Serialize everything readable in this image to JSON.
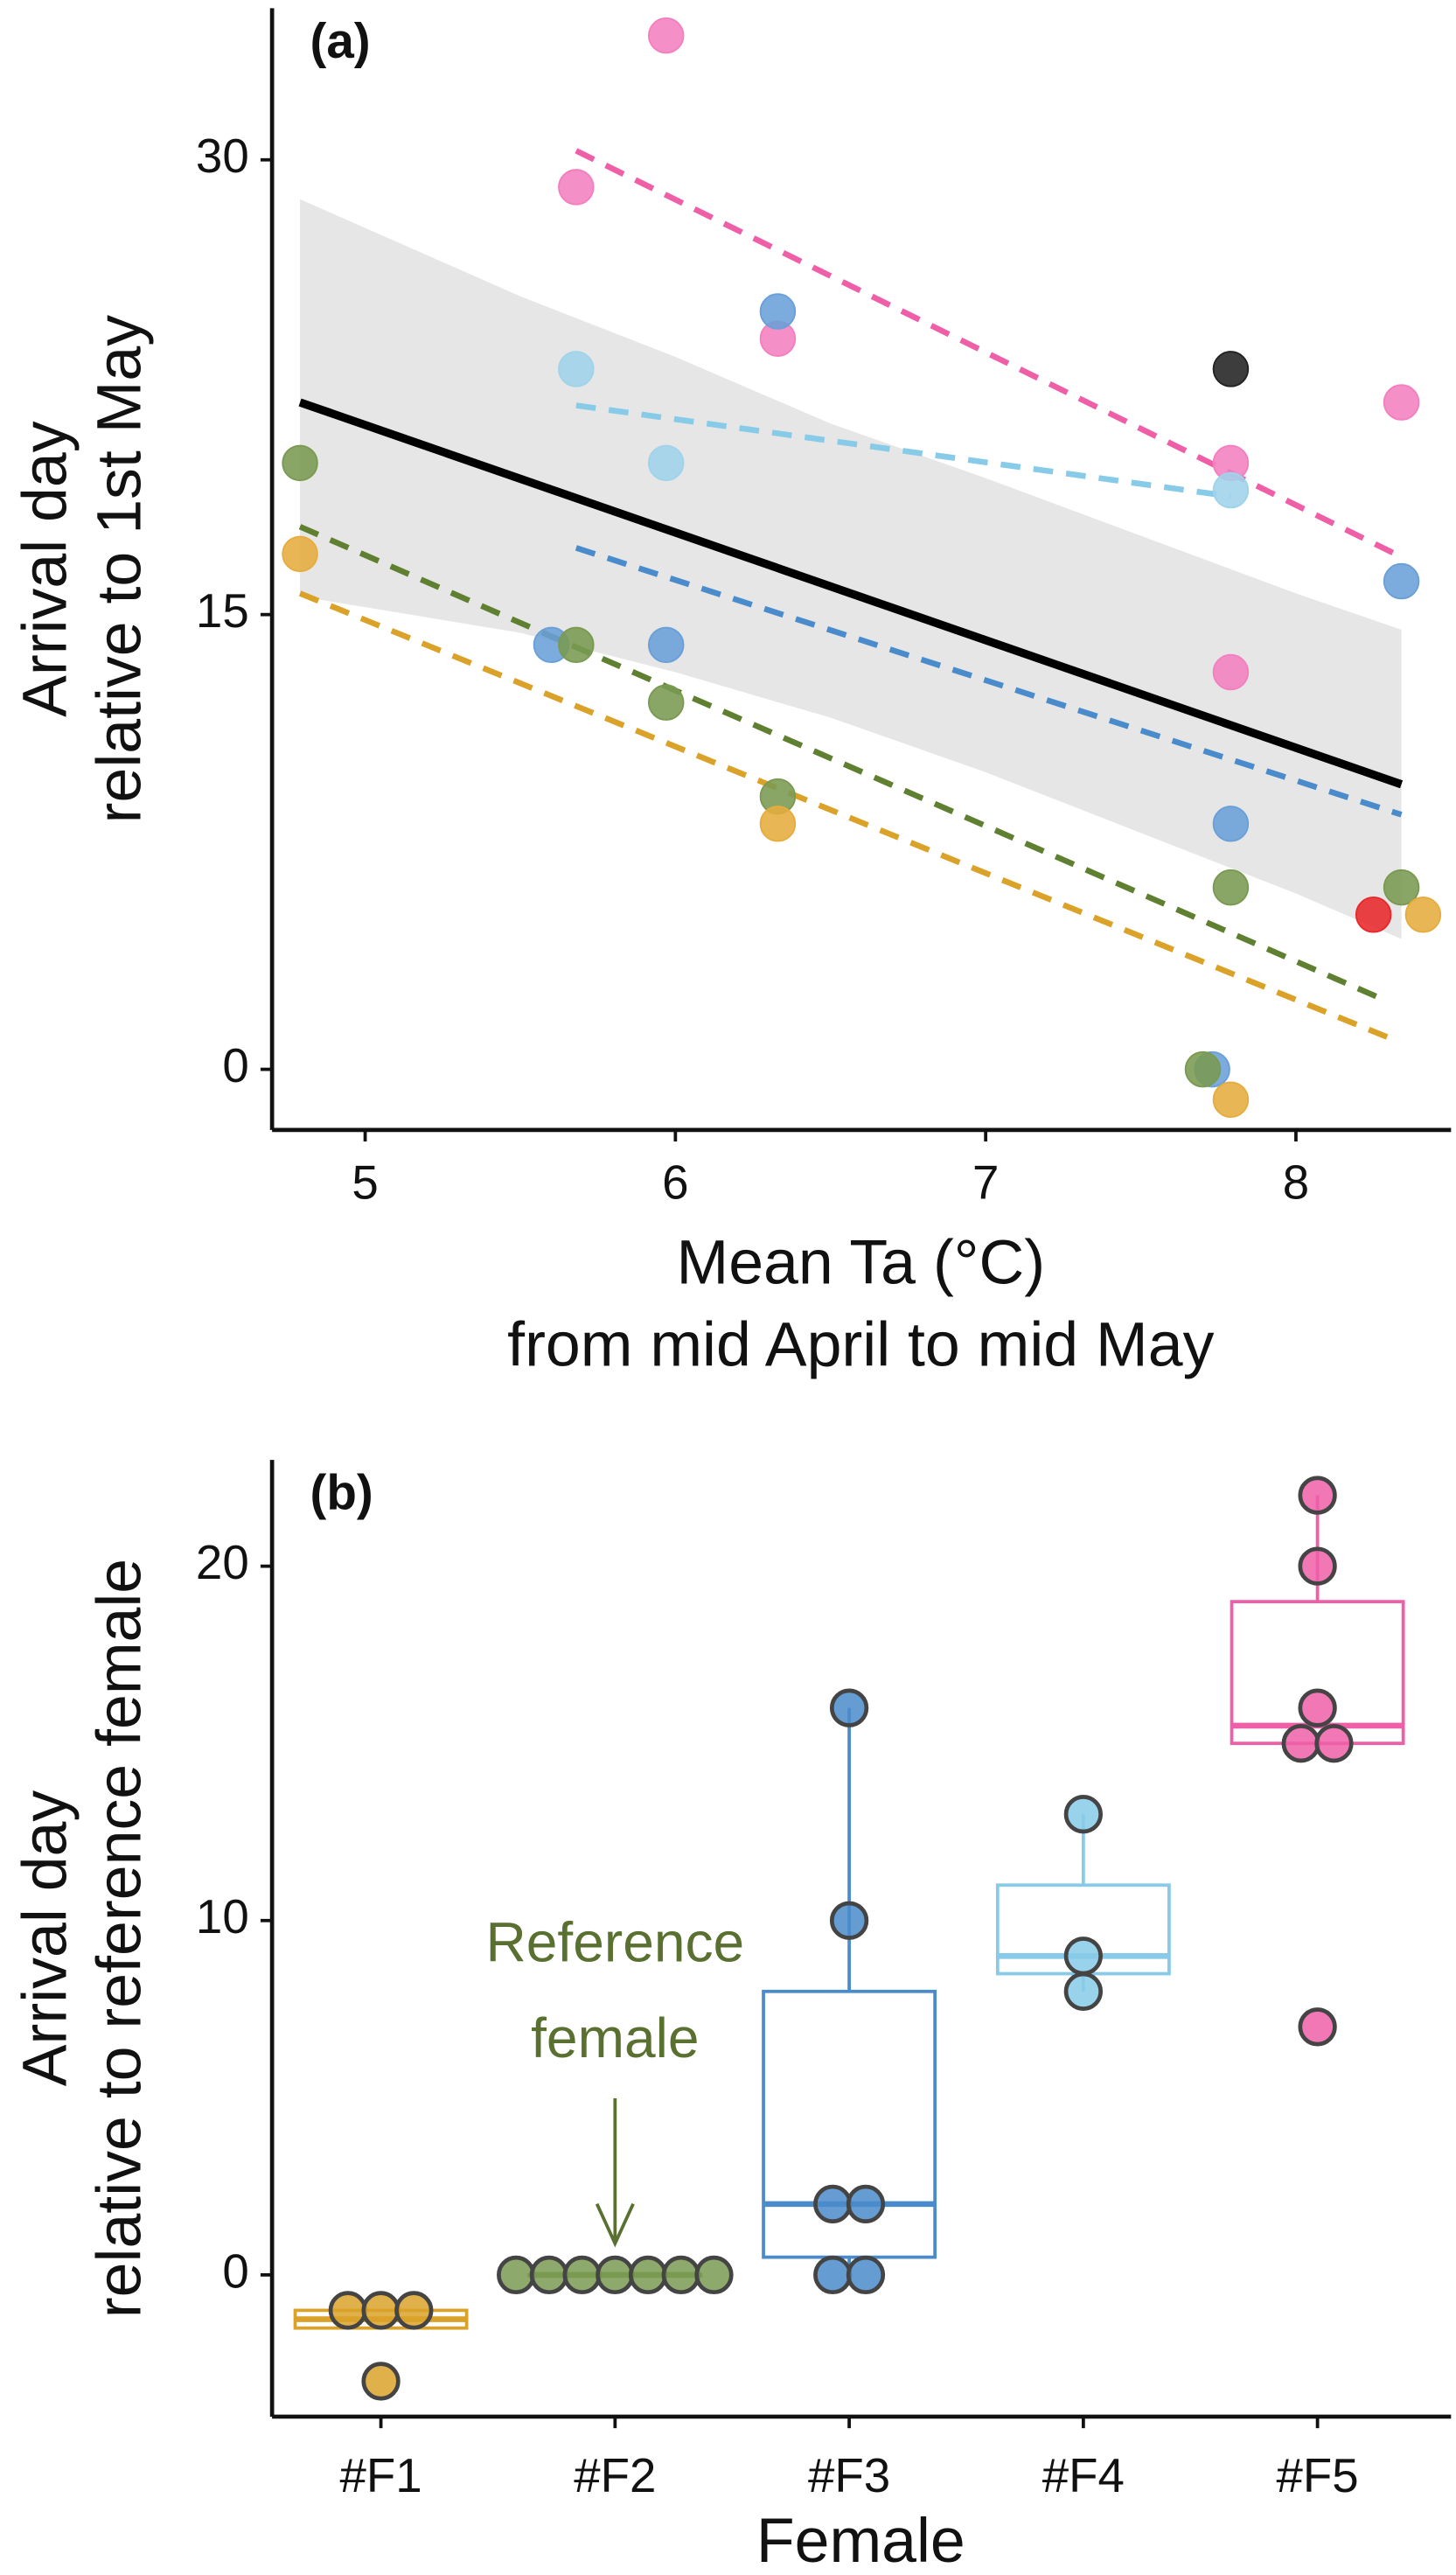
{
  "chart_data": [
    {
      "type": "scatter",
      "panel_label": "(a)",
      "x_label": [
        "Mean Ta (°C)",
        "from mid April to mid May"
      ],
      "y_label": [
        "Arrival day",
        "relative to 1st May"
      ],
      "xlim": [
        4.7,
        8.5
      ],
      "xticks": [
        5,
        6,
        7,
        8
      ],
      "ylim": [
        -2,
        35
      ],
      "yticks": [
        0,
        15,
        30
      ],
      "series": [
        {
          "color": "#f47fbf",
          "x": [
            5.97,
            5.68,
            6.33,
            7.79,
            7.79,
            8.34
          ],
          "values": [
            34.1,
            29.1,
            24.1,
            20.0,
            13.1,
            22.0
          ]
        },
        {
          "color": "#6a9fd8",
          "x": [
            6.33,
            5.6,
            5.97,
            7.79,
            8.34,
            7.73
          ],
          "values": [
            25.0,
            14.0,
            14.0,
            8.1,
            16.1,
            0
          ]
        },
        {
          "color": "#9fd3ea",
          "x": [
            5.68,
            5.97,
            7.79
          ],
          "values": [
            23.1,
            20.0,
            19.1
          ]
        },
        {
          "color": "#7a9a52",
          "x": [
            4.79,
            5.68,
            5.97,
            6.33,
            7.79,
            8.34,
            7.7
          ],
          "values": [
            20.0,
            14.0,
            12.1,
            9.0,
            6.0,
            6.0,
            0
          ]
        },
        {
          "color": "#e6ac3e",
          "x": [
            4.79,
            6.33,
            7.79,
            8.41
          ],
          "values": [
            17.0,
            8.1,
            -1.0,
            5.1
          ]
        },
        {
          "color": "#222222",
          "x": [
            7.79
          ],
          "values": [
            23.1
          ]
        },
        {
          "color": "#e8282b",
          "x": [
            8.25
          ],
          "values": [
            5.1
          ]
        }
      ],
      "fits": [
        {
          "color": "#ee5fa8",
          "x": [
            5.68,
            8.34
          ],
          "values": [
            30.3,
            16.9
          ]
        },
        {
          "color": "#87cbe8",
          "x": [
            5.68,
            7.79
          ],
          "values": [
            21.9,
            18.9
          ]
        },
        {
          "color": "#4a8ccb",
          "x": [
            5.68,
            8.34
          ],
          "values": [
            17.2,
            8.4
          ]
        },
        {
          "color": "#5f8030",
          "x": [
            4.79,
            8.26
          ],
          "values": [
            17.9,
            2.4
          ]
        },
        {
          "color": "#dba22a",
          "x": [
            4.79,
            8.31
          ],
          "values": [
            15.7,
            1.0
          ]
        }
      ],
      "overall_fit": {
        "color": "#000000",
        "x": [
          4.79,
          8.34
        ],
        "values": [
          22.0,
          9.4
        ]
      },
      "band": {
        "color": "#e6e6e6",
        "x": [
          4.79,
          5.5,
          6,
          6.5,
          7,
          7.5,
          8,
          8.34
        ],
        "upper": [
          28.7,
          25.5,
          23.5,
          21.3,
          19.5,
          17.6,
          15.7,
          14.5
        ],
        "lower": [
          15.6,
          14.4,
          13.1,
          11.6,
          9.8,
          7.8,
          5.8,
          4.3
        ]
      }
    },
    {
      "type": "box",
      "panel_label": "(b)",
      "x_label": [
        "Female"
      ],
      "y_label": [
        "Arrival day",
        "relative to reference female"
      ],
      "categories": [
        "#F1",
        "#F2",
        "#F3",
        "#F4",
        "#F5"
      ],
      "ylim": [
        -4,
        23
      ],
      "yticks": [
        0,
        10,
        20
      ],
      "colors": [
        "#dba22a",
        "#7a9a52",
        "#4a8ccb",
        "#87cbe8",
        "#ee5fa8"
      ],
      "boxes": [
        {
          "whisker_low": -1.5,
          "q1": -1.5,
          "median": -1.25,
          "q3": -1,
          "whisker_high": -1
        },
        {
          "whisker_low": 0,
          "q1": 0,
          "median": 0,
          "q3": 0,
          "whisker_high": 0
        },
        {
          "whisker_low": 0,
          "q1": 0.5,
          "median": 2,
          "q3": 8,
          "whisker_high": 16
        },
        {
          "whisker_low": 8,
          "q1": 8.5,
          "median": 9,
          "q3": 11,
          "whisker_high": 13
        },
        {
          "whisker_low": 15,
          "q1": 15,
          "median": 15.5,
          "q3": 19,
          "whisker_high": 22
        }
      ],
      "points": [
        [
          -1,
          -1,
          -1,
          -3
        ],
        [
          0,
          0,
          0,
          0,
          0,
          0,
          0
        ],
        [
          16,
          10,
          2,
          2,
          0,
          0
        ],
        [
          13,
          9,
          8
        ],
        [
          22,
          20,
          16,
          15,
          15,
          7
        ]
      ],
      "annotation": {
        "lines": [
          "Reference",
          "female"
        ],
        "category": 1
      }
    }
  ]
}
